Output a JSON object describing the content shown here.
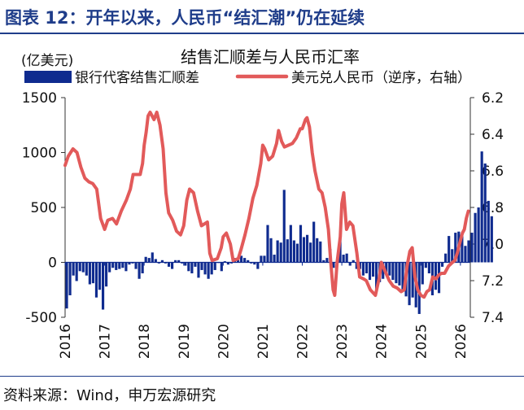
{
  "header": {
    "title": "图表 12：开年以来，人民币“结汇潮”仍在延续"
  },
  "footer": {
    "source": "资料来源：Wind，申万宏源研究"
  },
  "colors": {
    "bar": "#0f2b8f",
    "line": "#e25a5a",
    "title": "#1f3d8a"
  },
  "chart_data": {
    "type": "bar+line",
    "title": "结售汇顺差与人民币汇率",
    "ylabel_left": "(亿美元)",
    "left_axis": {
      "min": -500,
      "max": 1500,
      "ticks": [
        -500,
        0,
        500,
        1000,
        1500
      ]
    },
    "right_axis": {
      "min": 6.2,
      "max": 7.4,
      "inverted": true,
      "ticks": [
        "6.2",
        "6.4",
        "6.6",
        "6.8",
        "7.0",
        "7.2",
        "7.4"
      ]
    },
    "x_ticks": [
      "2016",
      "2017",
      "2018",
      "2019",
      "2020",
      "2021",
      "2022",
      "2023",
      "2024",
      "2025",
      "2026"
    ],
    "x_range": [
      2016.0,
      2026.25
    ],
    "legend": {
      "placement": "top-left"
    },
    "series": [
      {
        "name": "银行代客结售汇顺差",
        "type": "bar",
        "axis": "left",
        "start": 2016.0,
        "step_months": 1,
        "values": [
          -420,
          -300,
          -120,
          -170,
          -80,
          -90,
          -120,
          -200,
          -190,
          -320,
          -250,
          -430,
          -220,
          -90,
          -50,
          -70,
          -60,
          -50,
          -80,
          -20,
          -10,
          -60,
          -150,
          -100,
          50,
          40,
          90,
          30,
          -10,
          20,
          -10,
          -40,
          -60,
          20,
          20,
          -10,
          -30,
          -80,
          -100,
          -40,
          -140,
          -70,
          -110,
          -150,
          -110,
          -70,
          0,
          -80,
          10,
          -20,
          -10,
          40,
          20,
          60,
          40,
          20,
          -10,
          -20,
          -60,
          60,
          60,
          340,
          220,
          70,
          200,
          180,
          660,
          210,
          340,
          200,
          170,
          340,
          230,
          250,
          180,
          370,
          220,
          190,
          20,
          40,
          120,
          -50,
          -30,
          220,
          70,
          80,
          -30,
          20,
          -60,
          -60,
          -120,
          -100,
          -160,
          -130,
          -250,
          -180,
          -150,
          -100,
          -120,
          -160,
          -190,
          -210,
          -250,
          -310,
          -390,
          -320,
          -410,
          -470,
          -200,
          -50,
          -100,
          -300,
          -250,
          -280,
          -40,
          80,
          240,
          120,
          270,
          280,
          240,
          150,
          200,
          270,
          450,
          500,
          1010,
          900,
          560,
          420
        ]
      },
      {
        "name": "美元兑人民币（逆序，右轴）",
        "type": "line",
        "axis": "right",
        "points": [
          [
            2016.0,
            6.57
          ],
          [
            2016.08,
            6.52
          ],
          [
            2016.2,
            6.48
          ],
          [
            2016.3,
            6.5
          ],
          [
            2016.4,
            6.58
          ],
          [
            2016.5,
            6.64
          ],
          [
            2016.6,
            6.66
          ],
          [
            2016.7,
            6.67
          ],
          [
            2016.8,
            6.7
          ],
          [
            2016.9,
            6.86
          ],
          [
            2017.0,
            6.92
          ],
          [
            2017.08,
            6.87
          ],
          [
            2017.2,
            6.86
          ],
          [
            2017.3,
            6.89
          ],
          [
            2017.42,
            6.82
          ],
          [
            2017.55,
            6.76
          ],
          [
            2017.65,
            6.7
          ],
          [
            2017.72,
            6.62
          ],
          [
            2017.8,
            6.62
          ],
          [
            2017.9,
            6.62
          ],
          [
            2017.96,
            6.56
          ],
          [
            2018.0,
            6.46
          ],
          [
            2018.05,
            6.39
          ],
          [
            2018.1,
            6.3
          ],
          [
            2018.15,
            6.28
          ],
          [
            2018.2,
            6.3
          ],
          [
            2018.25,
            6.32
          ],
          [
            2018.32,
            6.28
          ],
          [
            2018.4,
            6.35
          ],
          [
            2018.48,
            6.48
          ],
          [
            2018.55,
            6.72
          ],
          [
            2018.62,
            6.83
          ],
          [
            2018.72,
            6.87
          ],
          [
            2018.82,
            6.93
          ],
          [
            2018.92,
            6.95
          ],
          [
            2019.0,
            6.9
          ],
          [
            2019.08,
            6.76
          ],
          [
            2019.15,
            6.7
          ],
          [
            2019.25,
            6.72
          ],
          [
            2019.35,
            6.82
          ],
          [
            2019.45,
            6.9
          ],
          [
            2019.6,
            6.88
          ],
          [
            2019.66,
            7.05
          ],
          [
            2019.72,
            7.09
          ],
          [
            2019.85,
            7.08
          ],
          [
            2019.95,
            7.02
          ],
          [
            2020.0,
            6.96
          ],
          [
            2020.08,
            6.94
          ],
          [
            2020.18,
            7.0
          ],
          [
            2020.25,
            7.09
          ],
          [
            2020.38,
            7.08
          ],
          [
            2020.45,
            7.03
          ],
          [
            2020.55,
            6.95
          ],
          [
            2020.65,
            6.86
          ],
          [
            2020.75,
            6.75
          ],
          [
            2020.85,
            6.68
          ],
          [
            2020.95,
            6.56
          ],
          [
            2021.0,
            6.46
          ],
          [
            2021.05,
            6.48
          ],
          [
            2021.15,
            6.54
          ],
          [
            2021.25,
            6.52
          ],
          [
            2021.35,
            6.45
          ],
          [
            2021.4,
            6.38
          ],
          [
            2021.48,
            6.44
          ],
          [
            2021.55,
            6.47
          ],
          [
            2021.65,
            6.46
          ],
          [
            2021.75,
            6.45
          ],
          [
            2021.85,
            6.42
          ],
          [
            2021.95,
            6.37
          ],
          [
            2022.0,
            6.37
          ],
          [
            2022.08,
            6.32
          ],
          [
            2022.12,
            6.31
          ],
          [
            2022.18,
            6.36
          ],
          [
            2022.25,
            6.5
          ],
          [
            2022.32,
            6.6
          ],
          [
            2022.42,
            6.7
          ],
          [
            2022.5,
            6.72
          ],
          [
            2022.58,
            6.8
          ],
          [
            2022.66,
            6.92
          ],
          [
            2022.72,
            7.1
          ],
          [
            2022.78,
            7.25
          ],
          [
            2022.82,
            7.28
          ],
          [
            2022.88,
            7.1
          ],
          [
            2022.96,
            6.96
          ],
          [
            2023.0,
            6.78
          ],
          [
            2023.05,
            6.72
          ],
          [
            2023.12,
            6.92
          ],
          [
            2023.2,
            6.88
          ],
          [
            2023.28,
            6.9
          ],
          [
            2023.38,
            7.05
          ],
          [
            2023.45,
            7.18
          ],
          [
            2023.55,
            7.19
          ],
          [
            2023.62,
            7.2
          ],
          [
            2023.72,
            7.25
          ],
          [
            2023.85,
            7.28
          ],
          [
            2023.95,
            7.18
          ],
          [
            2024.0,
            7.1
          ],
          [
            2024.1,
            7.15
          ],
          [
            2024.2,
            7.2
          ],
          [
            2024.3,
            7.23
          ],
          [
            2024.4,
            7.24
          ],
          [
            2024.5,
            7.26
          ],
          [
            2024.58,
            7.25
          ],
          [
            2024.65,
            7.12
          ],
          [
            2024.72,
            7.04
          ],
          [
            2024.78,
            7.02
          ],
          [
            2024.85,
            7.18
          ],
          [
            2024.92,
            7.25
          ],
          [
            2025.0,
            7.28
          ],
          [
            2025.08,
            7.29
          ],
          [
            2025.15,
            7.26
          ],
          [
            2025.22,
            7.25
          ],
          [
            2025.3,
            7.18
          ],
          [
            2025.38,
            7.19
          ],
          [
            2025.45,
            7.17
          ],
          [
            2025.52,
            7.16
          ],
          [
            2025.6,
            7.16
          ],
          [
            2025.7,
            7.12
          ],
          [
            2025.8,
            7.1
          ],
          [
            2025.86,
            7.09
          ],
          [
            2025.92,
            7.05
          ],
          [
            2026.0,
            6.98
          ],
          [
            2026.05,
            6.94
          ],
          [
            2026.1,
            6.92
          ],
          [
            2026.15,
            6.86
          ],
          [
            2026.2,
            6.82
          ]
        ]
      }
    ]
  }
}
